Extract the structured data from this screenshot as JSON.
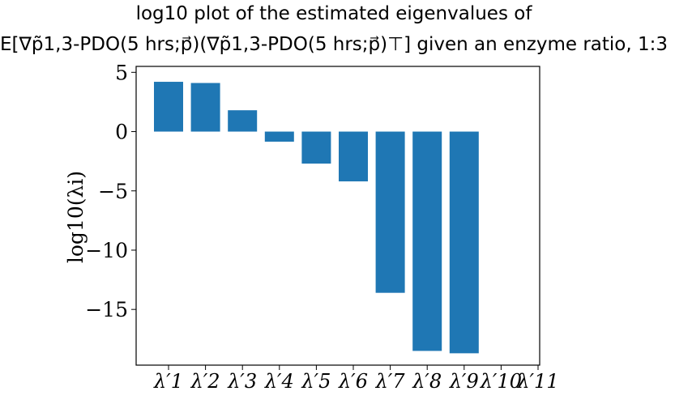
{
  "chart_data": {
    "type": "bar",
    "title": "log10 plot of the estimated eigenvalues of",
    "subtitle": "E[∇p̃1,3-PDO(5 hrs;p⃗)(∇p̃1,3-PDO(5 hrs;p⃗)⊤] given an enzyme ratio, 1:3",
    "xlabel": "",
    "ylabel": "log10(λi)",
    "categories": [
      "λ′1",
      "λ′2",
      "λ′3",
      "λ′4",
      "λ′5",
      "λ′6",
      "λ′7",
      "λ′8",
      "λ′9",
      "λ′10",
      "λ′11"
    ],
    "values": [
      4.2,
      4.1,
      1.8,
      -0.85,
      -2.7,
      -4.2,
      -13.6,
      -18.5,
      -18.7,
      null,
      null
    ],
    "ylim": [
      -19.7,
      5.5
    ],
    "yticks": [
      5,
      0,
      -5,
      -10,
      -15
    ],
    "ytick_labels": [
      "5",
      "0",
      "−5",
      "−10",
      "−15"
    ],
    "bar_color": "#1f77b4",
    "grid": false,
    "legend": "none"
  }
}
